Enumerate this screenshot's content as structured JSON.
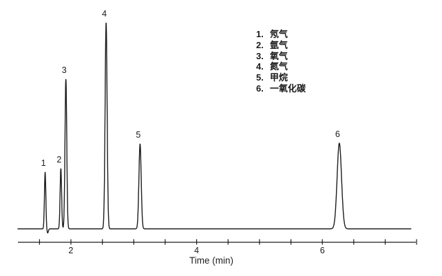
{
  "figure": {
    "background_color": "#ffffff",
    "trace_color": "#1c1c1c",
    "text_color": "#1a1a1a"
  },
  "legend": {
    "items": [
      {
        "number": "1.",
        "label": "氖气"
      },
      {
        "number": "2.",
        "label": "氩气"
      },
      {
        "number": "3.",
        "label": "氧气"
      },
      {
        "number": "4.",
        "label": "氮气"
      },
      {
        "number": "5.",
        "label": "甲烷"
      },
      {
        "number": "6.",
        "label": "一氧化碳"
      }
    ]
  },
  "chart_data": {
    "type": "line",
    "title": "",
    "xlabel": "Time (min)",
    "ylabel": "",
    "xlim": [
      1.16,
      7.5
    ],
    "grid": false,
    "legend_position": "upper-right",
    "x_ticks": [
      {
        "value": 1.5,
        "label": ""
      },
      {
        "value": 2,
        "label": "2"
      },
      {
        "value": 2.5,
        "label": ""
      },
      {
        "value": 3,
        "label": ""
      },
      {
        "value": 3.5,
        "label": ""
      },
      {
        "value": 4,
        "label": "4"
      },
      {
        "value": 4.5,
        "label": ""
      },
      {
        "value": 5,
        "label": ""
      },
      {
        "value": 5.5,
        "label": ""
      },
      {
        "value": 6,
        "label": "6"
      },
      {
        "value": 6.5,
        "label": ""
      },
      {
        "value": 7,
        "label": ""
      },
      {
        "value": 7.5,
        "label": ""
      }
    ],
    "peaks": [
      {
        "label": "1",
        "analyte": "氖气",
        "time_min": 1.59,
        "rel_height": 27.5,
        "sigma_min": 0.011
      },
      {
        "label": "2",
        "analyte": "氩气",
        "time_min": 1.84,
        "rel_height": 29.2,
        "sigma_min": 0.012
      },
      {
        "label": "3",
        "analyte": "氧气",
        "time_min": 1.92,
        "rel_height": 72.6,
        "sigma_min": 0.014
      },
      {
        "label": "4",
        "analyte": "氮气",
        "time_min": 2.56,
        "rel_height": 100,
        "sigma_min": 0.016
      },
      {
        "label": "5",
        "analyte": "甲烷",
        "time_min": 3.1,
        "rel_height": 41.2,
        "sigma_min": 0.018
      },
      {
        "label": "6",
        "analyte": "一氧化碳",
        "time_min": 6.27,
        "rel_height": 41.6,
        "sigma_min": 0.035
      }
    ],
    "baseline_dip": {
      "time_min": 1.63,
      "rel_depth": 2.0,
      "sigma_min": 0.011
    },
    "baseline_rel": 0
  }
}
